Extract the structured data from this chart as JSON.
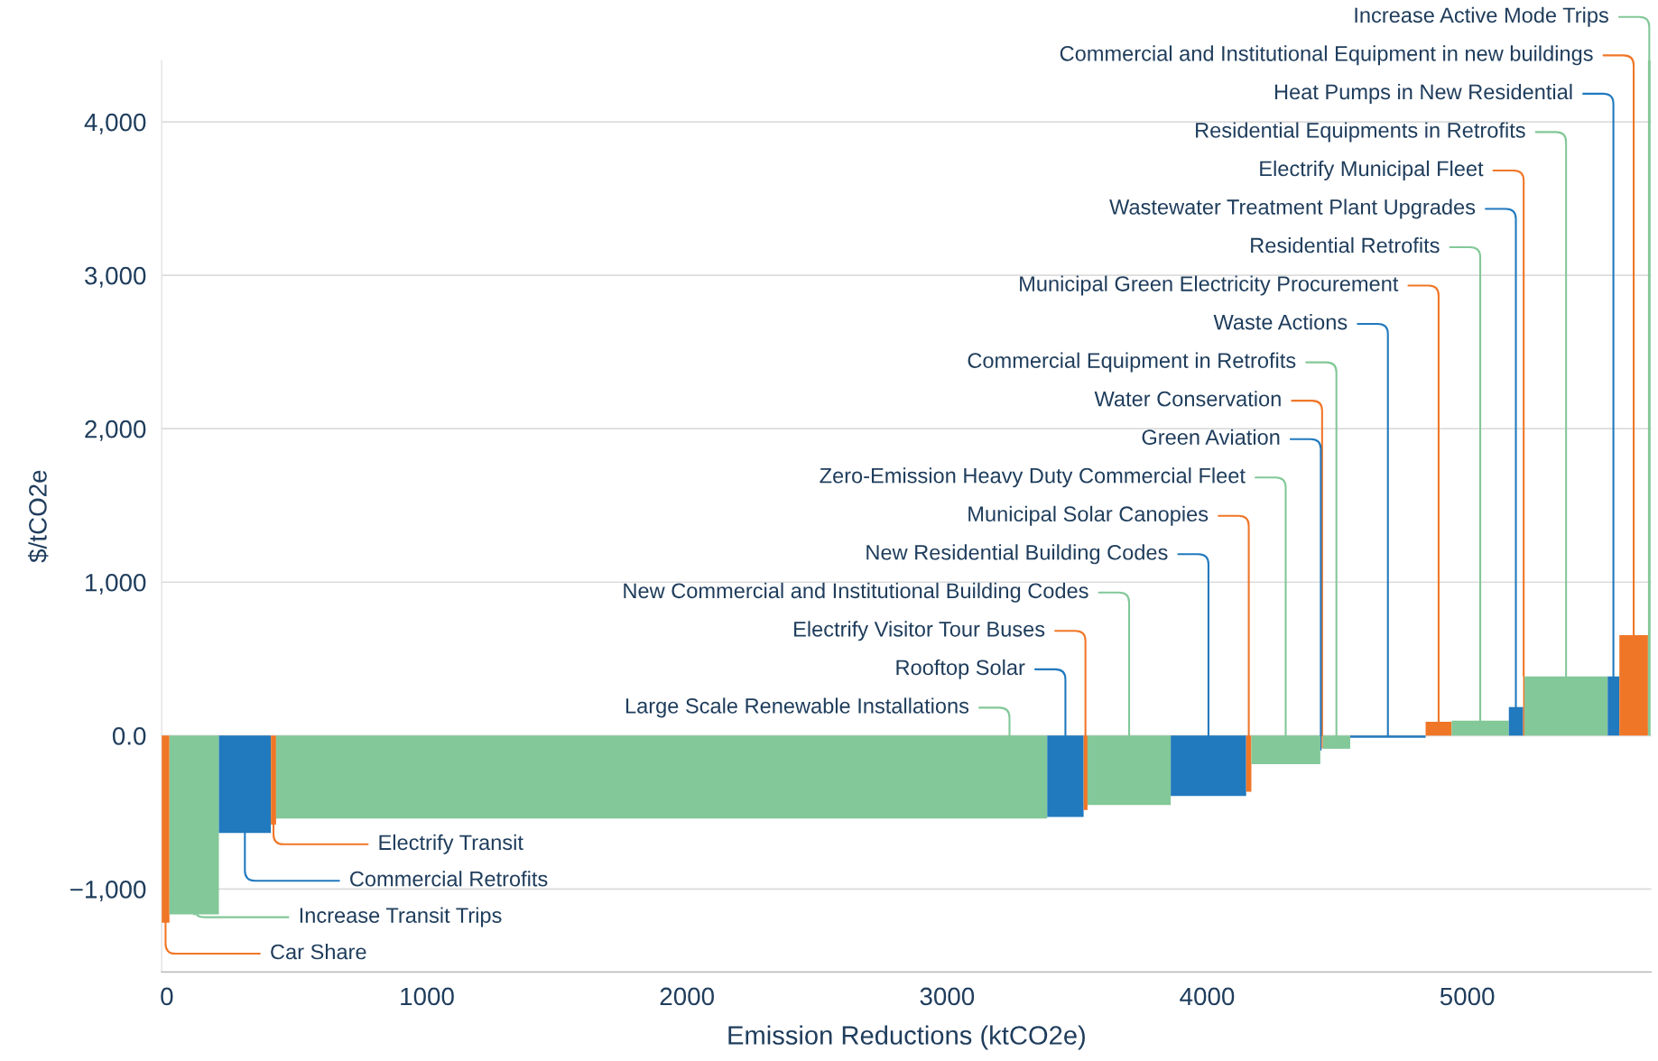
{
  "chart_data": {
    "type": "histogram",
    "xlabel": "Emission Reductions (ktCO2e)",
    "ylabel": "$/tCO2e",
    "bins": [
      -20,
      10,
      200,
      400,
      420,
      3385,
      3525,
      3540,
      3860,
      4150,
      4170,
      4435,
      4440,
      4445,
      4550,
      4840,
      4940,
      5160,
      5215,
      5220,
      5540,
      5585,
      5695,
      5705
    ],
    "values": [
      -1220,
      -1166,
      -635,
      -580,
      -540,
      -530,
      -485,
      -452,
      -393,
      -366,
      -186,
      -97,
      -83,
      -86,
      -15,
      90,
      97,
      186,
      390,
      386,
      386,
      655,
      4400
    ],
    "colors": [
      "#f07627",
      "#83c898",
      "#2179be",
      "#f07627",
      "#83c898",
      "#2179be",
      "#f07627",
      "#83c898",
      "#2179be",
      "#f07627",
      "#83c898",
      "#2179be",
      "#f07627",
      "#83c898",
      "#2179be",
      "#f07627",
      "#83c898",
      "#2179be",
      "#f07627",
      "#83c898",
      "#2179be",
      "#f07627",
      "#83c898"
    ],
    "xlim": [
      -20,
      5708
    ],
    "ylim": [
      -1540,
      4400
    ],
    "xticks": [
      0,
      1000,
      2000,
      3000,
      4000,
      5000
    ],
    "yticks": [
      {
        "value": -1000,
        "label": "−1,000"
      },
      {
        "value": 0,
        "label": "0.0"
      },
      {
        "value": 1000,
        "label": "1,000"
      },
      {
        "value": 2000,
        "label": "2,000"
      },
      {
        "value": 3000,
        "label": "3,000"
      },
      {
        "value": 4000,
        "label": "4,000"
      }
    ],
    "grid": "y",
    "annotations": [
      {
        "text": "Car Share",
        "x": -5,
        "y": -1220
      },
      {
        "text": "Increase Transit Trips",
        "x": 105,
        "y": -1166
      },
      {
        "text": "Commercial Retrofits",
        "x": 300,
        "y": -635
      },
      {
        "text": "Electrify Transit",
        "x": 410,
        "y": -580
      },
      {
        "text": "Large Scale Renewable Installations",
        "x": 3240,
        "y": 0
      },
      {
        "text": "Rooftop Solar",
        "x": 3455,
        "y": 0
      },
      {
        "text": "Electrify Visitor Tour Buses",
        "x": 3532,
        "y": 0
      },
      {
        "text": "New Commercial and Institutional Building Codes",
        "x": 3700,
        "y": 0
      },
      {
        "text": "New Residential Building Codes",
        "x": 4005,
        "y": 0
      },
      {
        "text": "Municipal Solar Canopies",
        "x": 4160,
        "y": 0
      },
      {
        "text": "Zero-Emission Heavy Duty Commercial Fleet",
        "x": 4302,
        "y": 0
      },
      {
        "text": "Green Aviation",
        "x": 4437,
        "y": 0
      },
      {
        "text": "Water Conservation",
        "x": 4442,
        "y": 0
      },
      {
        "text": "Commercial Equipment in Retrofits",
        "x": 4497,
        "y": 0
      },
      {
        "text": "Waste Actions",
        "x": 4695,
        "y": 0
      },
      {
        "text": "Municipal Green Electricity Procurement",
        "x": 4890,
        "y": 90
      },
      {
        "text": "Residential Retrofits",
        "x": 5050,
        "y": 97
      },
      {
        "text": "Wastewater Treatment Plant Upgrades",
        "x": 5187,
        "y": 186
      },
      {
        "text": "Electrify Municipal Fleet",
        "x": 5217,
        "y": 390
      },
      {
        "text": "Residential Equipments in Retrofits",
        "x": 5380,
        "y": 386
      },
      {
        "text": "Heat Pumps in New Residential",
        "x": 5562,
        "y": 386
      },
      {
        "text": "Commercial and Institutional Equipment in new buildings",
        "x": 5640,
        "y": 655
      },
      {
        "text": "Increase Active Mode Trips",
        "x": 5700,
        "y": 4400
      }
    ]
  }
}
